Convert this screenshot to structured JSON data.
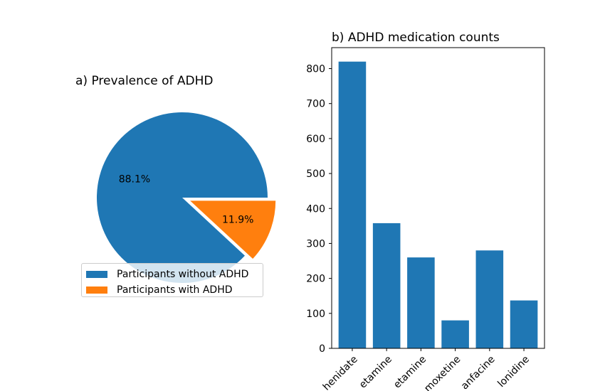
{
  "chart_data": [
    {
      "type": "pie",
      "title": "a) Prevalence of ADHD",
      "labels": [
        "Participants without ADHD",
        "Participants with ADHD"
      ],
      "values": [
        88.1,
        11.9
      ],
      "value_labels": [
        "88.1%",
        "11.9%"
      ],
      "colors": [
        "#1f77b4",
        "#ff7f0e"
      ],
      "exploded": [
        false,
        true
      ],
      "legend": "lower-center"
    },
    {
      "type": "bar",
      "title": "b) ADHD medication counts",
      "categories": [
        "Methylphenidate",
        "Dexamfetamine",
        "Lisdexamfetamine",
        "Atomoxetine",
        "Guanfacine",
        "Clonidine"
      ],
      "tick_labels": [
        "henidate",
        "etamine",
        "etamine",
        "moxetine",
        "anfacine",
        "lonidine"
      ],
      "values": [
        820,
        358,
        260,
        80,
        280,
        137
      ],
      "ylim": [
        0,
        860
      ],
      "yticks": [
        0,
        100,
        200,
        300,
        400,
        500,
        600,
        700,
        800
      ],
      "color": "#1f77b4",
      "xlabel": "",
      "ylabel": ""
    }
  ]
}
